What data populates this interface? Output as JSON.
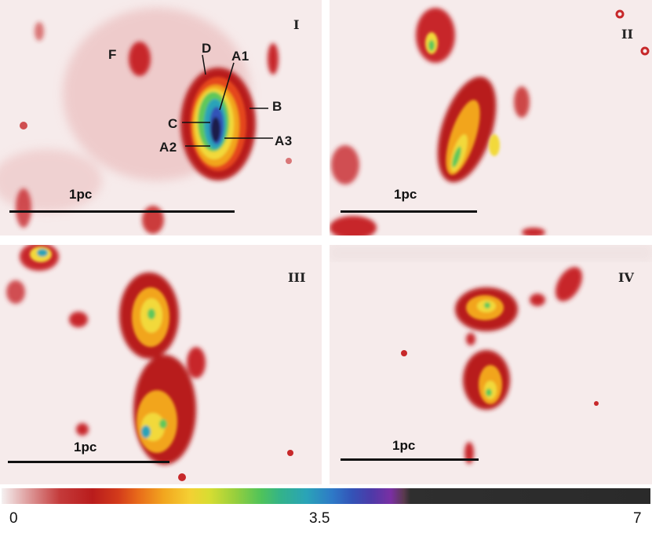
{
  "panels": [
    {
      "numeral": "I",
      "scale": "1pc",
      "labels": [
        "F",
        "D",
        "A1",
        "B",
        "C",
        "A2",
        "A3"
      ]
    },
    {
      "numeral": "II",
      "scale": "1pc"
    },
    {
      "numeral": "III",
      "scale": "1pc"
    },
    {
      "numeral": "IV",
      "scale": "1pc"
    }
  ],
  "colorbar": {
    "ticks": [
      "0",
      "3.5",
      "7"
    ]
  },
  "colors": {
    "background": "#f6ebeb",
    "low": "#c43a3a",
    "mid": "#f4d033",
    "high": "#2e79c7",
    "peak": "#1a1f4a"
  }
}
